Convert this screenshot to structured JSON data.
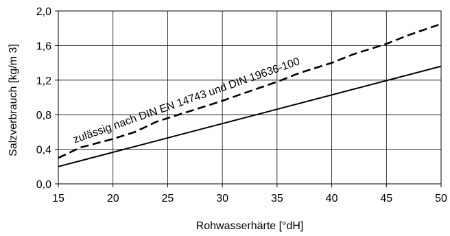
{
  "chart_data": {
    "type": "line",
    "title": "",
    "xlabel": "Rohwasserhärte [°dH]",
    "ylabel": "Salzverbrauch [kg/m 3]",
    "xlim": [
      15,
      50
    ],
    "ylim": [
      0,
      2.0
    ],
    "x_ticks": [
      "15",
      "20",
      "25",
      "30",
      "35",
      "40",
      "45",
      "50"
    ],
    "y_ticks": [
      "0,0",
      "0,4",
      "0,8",
      "1,2",
      "1,6",
      "2,0"
    ],
    "grid": true,
    "series": [
      {
        "style": "solid",
        "color": "#000000",
        "x": [
          15,
          50
        ],
        "y": [
          0.2,
          1.36
        ]
      },
      {
        "style": "dashed",
        "color": "#000000",
        "x": [
          15,
          17,
          20,
          22,
          24,
          25,
          28,
          30,
          32,
          35,
          37,
          40,
          42,
          45,
          47,
          50
        ],
        "y": [
          0.3,
          0.42,
          0.52,
          0.6,
          0.72,
          0.76,
          0.88,
          0.96,
          1.05,
          1.18,
          1.28,
          1.4,
          1.5,
          1.62,
          1.72,
          1.85
        ]
      }
    ],
    "annotation": {
      "text": "zulässig nach DIN EN 14743 und DIN 19636-100",
      "x": 16.5,
      "y": 0.47
    }
  }
}
